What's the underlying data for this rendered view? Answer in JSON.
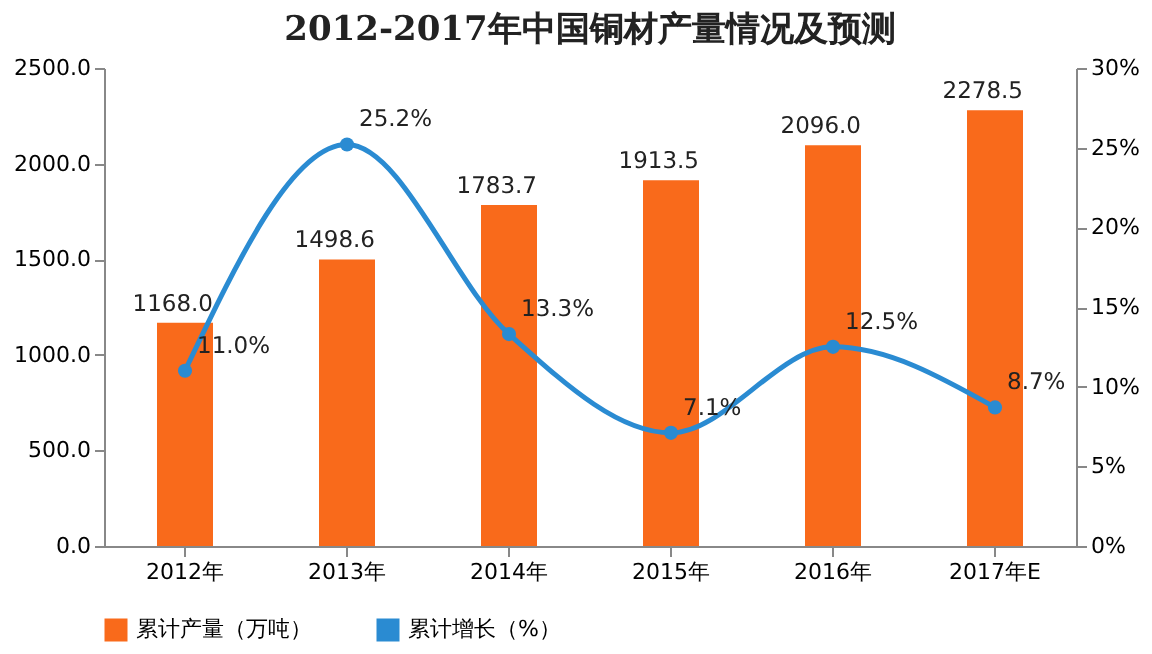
{
  "chart_data": {
    "type": "bar",
    "title": "2012-2017年中国铜材产量情况及预测",
    "categories": [
      "2012年",
      "2013年",
      "2014年",
      "2015年",
      "2016年",
      "2017年E"
    ],
    "series": [
      {
        "name": "累计产量（万吨）",
        "color": "#f96a1b",
        "values": [
          1168.0,
          1498.6,
          1783.7,
          1913.5,
          2096.0,
          2278.5
        ],
        "value_labels": [
          "1168.0",
          "1498.6",
          "1783.7",
          "1913.5",
          "2096.0",
          "2278.5"
        ]
      },
      {
        "name": "累计增长（%）",
        "type": "line",
        "axis": "y2",
        "color": "#2a8bd2",
        "values": [
          11.0,
          25.2,
          13.3,
          7.1,
          12.5,
          8.7
        ],
        "value_labels": [
          "11.0%",
          "25.2%",
          "13.3%",
          "7.1%",
          "12.5%",
          "8.7%"
        ]
      }
    ],
    "ylim": [
      0,
      2500
    ],
    "yticks": [
      {
        "value": 0,
        "label": "0.0"
      },
      {
        "value": 500,
        "label": "500.0"
      },
      {
        "value": 1000,
        "label": "1000.0"
      },
      {
        "value": 1500,
        "label": "1500.0"
      },
      {
        "value": 2000,
        "label": "2000.0"
      },
      {
        "value": 2500,
        "label": "2500.0"
      }
    ],
    "y2lim": [
      0,
      30
    ],
    "y2ticks": [
      {
        "value": 0,
        "label": "0%"
      },
      {
        "value": 5,
        "label": "5%"
      },
      {
        "value": 10,
        "label": "10%"
      },
      {
        "value": 15,
        "label": "15%"
      },
      {
        "value": 20,
        "label": "20%"
      },
      {
        "value": 25,
        "label": "25%"
      },
      {
        "value": 30,
        "label": "30%"
      }
    ],
    "marker": "circle",
    "legend": "bottom"
  }
}
